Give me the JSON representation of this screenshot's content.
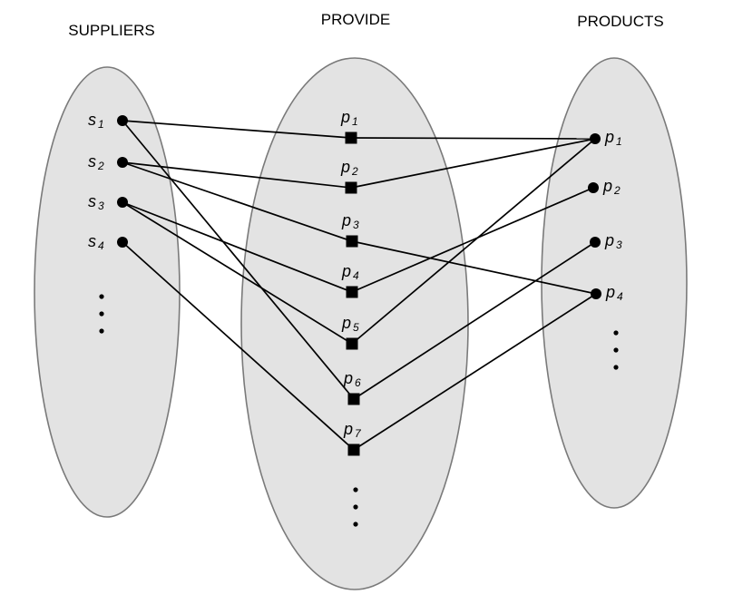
{
  "headings": {
    "suppliers": "SUPPLIERS",
    "provide": "PROVIDE",
    "products": "PRODUCTS"
  },
  "suppliers": [
    {
      "id": "s1",
      "letter": "s",
      "sub": "1"
    },
    {
      "id": "s2",
      "letter": "s",
      "sub": "2"
    },
    {
      "id": "s3",
      "letter": "s",
      "sub": "3"
    },
    {
      "id": "s4",
      "letter": "s",
      "sub": "4"
    }
  ],
  "relationships": [
    {
      "id": "r1",
      "letter": "p",
      "sub": "1"
    },
    {
      "id": "r2",
      "letter": "p",
      "sub": "2"
    },
    {
      "id": "r3",
      "letter": "p",
      "sub": "3"
    },
    {
      "id": "r4",
      "letter": "p",
      "sub": "4"
    },
    {
      "id": "r5",
      "letter": "p",
      "sub": "5"
    },
    {
      "id": "r6",
      "letter": "p",
      "sub": "6"
    },
    {
      "id": "r7",
      "letter": "p",
      "sub": "7"
    }
  ],
  "products": [
    {
      "id": "p1",
      "letter": "p",
      "sub": "1"
    },
    {
      "id": "p2",
      "letter": "p",
      "sub": "2"
    },
    {
      "id": "p3",
      "letter": "p",
      "sub": "3"
    },
    {
      "id": "p4",
      "letter": "p",
      "sub": "4"
    }
  ],
  "edges": [
    [
      "s1",
      "r1"
    ],
    [
      "r1",
      "p1"
    ],
    [
      "s2",
      "r2"
    ],
    [
      "r2",
      "p1"
    ],
    [
      "s2",
      "r3"
    ],
    [
      "r3",
      "p4"
    ],
    [
      "s3",
      "r4"
    ],
    [
      "r4",
      "p2"
    ],
    [
      "s3",
      "r5"
    ],
    [
      "r5",
      "p1"
    ],
    [
      "s1",
      "r6"
    ],
    [
      "r6",
      "p3"
    ],
    [
      "s4",
      "r7"
    ],
    [
      "r7",
      "p4"
    ]
  ],
  "colors": {
    "oval_fill": "#e3e3e3",
    "oval_stroke": "#7a7a7a",
    "ink": "#000000"
  }
}
